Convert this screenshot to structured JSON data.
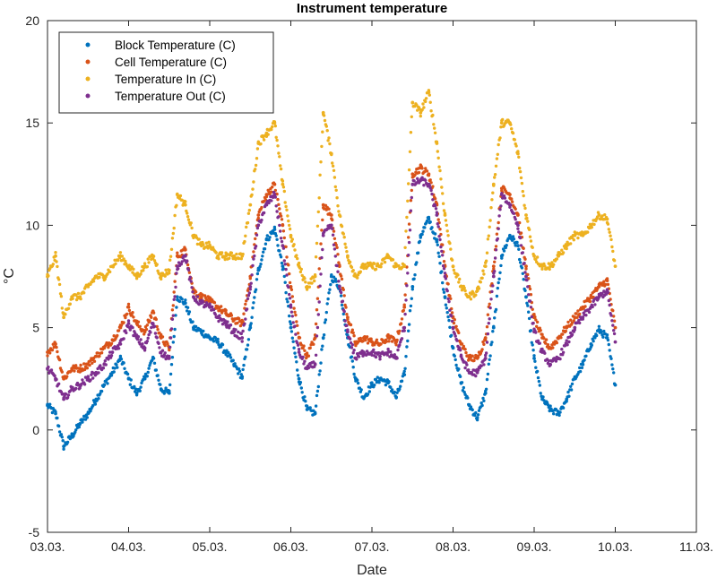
{
  "chart_data": {
    "type": "scatter",
    "title": "Instrument temperature",
    "xlabel": "Date",
    "ylabel": "°C",
    "xlim": [
      0,
      8
    ],
    "ylim": [
      -5,
      20
    ],
    "grid": false,
    "legend_position": "top-left",
    "x_ticks": [
      0,
      1,
      2,
      3,
      4,
      5,
      6,
      7,
      8
    ],
    "x_tick_labels": [
      "03.03.",
      "04.03.",
      "05.03.",
      "06.03.",
      "07.03.",
      "08.03.",
      "09.03.",
      "10.03.",
      "11.03."
    ],
    "y_ticks": [
      -5,
      0,
      5,
      10,
      15,
      20
    ],
    "y_tick_labels": [
      "-5",
      "0",
      "5",
      "10",
      "15",
      "20"
    ],
    "x_unit": "days since 03.03.",
    "x": [
      0.0,
      0.1,
      0.2,
      0.3,
      0.4,
      0.5,
      0.6,
      0.7,
      0.8,
      0.9,
      1.0,
      1.1,
      1.2,
      1.3,
      1.4,
      1.5,
      1.6,
      1.7,
      1.8,
      1.9,
      2.0,
      2.1,
      2.2,
      2.3,
      2.4,
      2.5,
      2.6,
      2.7,
      2.8,
      2.9,
      3.0,
      3.1,
      3.2,
      3.3,
      3.4,
      3.5,
      3.6,
      3.7,
      3.8,
      3.9,
      4.0,
      4.1,
      4.2,
      4.3,
      4.4,
      4.5,
      4.6,
      4.7,
      4.8,
      4.9,
      5.0,
      5.1,
      5.2,
      5.3,
      5.4,
      5.5,
      5.6,
      5.7,
      5.8,
      5.9,
      6.0,
      6.1,
      6.2,
      6.3,
      6.4,
      6.5,
      6.6,
      6.7,
      6.8,
      6.9,
      7.0
    ],
    "series": [
      {
        "name": "Block Temperature (C)",
        "color": "#0072BD",
        "values": [
          1.2,
          0.8,
          -0.8,
          -0.3,
          0.3,
          0.8,
          1.5,
          2.2,
          2.8,
          3.5,
          2.5,
          1.8,
          2.5,
          3.5,
          2.0,
          1.8,
          6.5,
          6.2,
          5.0,
          4.8,
          4.5,
          4.3,
          3.8,
          3.2,
          2.6,
          5.0,
          7.8,
          9.3,
          9.8,
          8.0,
          5.0,
          2.5,
          1.0,
          0.8,
          4.5,
          7.5,
          7.0,
          4.5,
          2.5,
          1.6,
          2.2,
          2.5,
          2.3,
          1.6,
          2.7,
          7.0,
          9.5,
          10.3,
          9.2,
          6.5,
          4.0,
          2.3,
          1.2,
          0.6,
          1.8,
          5.0,
          8.5,
          9.5,
          9.0,
          6.5,
          3.5,
          1.5,
          1.0,
          0.8,
          1.5,
          2.5,
          3.2,
          4.2,
          4.9,
          4.5,
          2.2
        ]
      },
      {
        "name": "Cell Temperature (C)",
        "color": "#D95319",
        "values": [
          3.8,
          4.2,
          2.5,
          3.0,
          3.0,
          3.2,
          3.6,
          4.0,
          4.4,
          5.0,
          6.0,
          5.2,
          4.8,
          5.8,
          4.5,
          4.0,
          8.5,
          8.8,
          6.8,
          6.5,
          6.3,
          6.0,
          5.7,
          5.4,
          5.2,
          7.5,
          10.5,
          11.5,
          12.0,
          10.0,
          7.0,
          4.5,
          3.6,
          4.5,
          11.0,
          10.5,
          8.0,
          5.5,
          4.2,
          4.5,
          4.3,
          4.2,
          4.5,
          4.3,
          6.0,
          12.5,
          12.8,
          12.5,
          11.0,
          8.0,
          5.5,
          4.2,
          3.5,
          3.5,
          4.5,
          8.0,
          11.8,
          11.5,
          10.5,
          8.0,
          5.5,
          4.5,
          4.0,
          4.5,
          5.0,
          5.5,
          6.0,
          6.5,
          7.0,
          7.3,
          5.0
        ]
      },
      {
        "name": "Temperature In (C)",
        "color": "#EDB120",
        "values": [
          7.5,
          8.5,
          5.5,
          6.5,
          6.5,
          7.0,
          7.5,
          7.5,
          8.0,
          8.5,
          8.0,
          7.5,
          8.0,
          8.5,
          7.5,
          7.8,
          11.5,
          11.0,
          9.5,
          9.0,
          9.0,
          8.5,
          8.5,
          8.5,
          8.5,
          11.0,
          14.0,
          14.5,
          15.0,
          12.0,
          9.5,
          8.0,
          7.0,
          7.5,
          15.5,
          13.5,
          10.5,
          8.5,
          7.5,
          8.0,
          8.0,
          8.0,
          8.5,
          8.0,
          8.0,
          16.0,
          15.5,
          16.5,
          14.0,
          10.5,
          8.0,
          7.0,
          6.5,
          6.8,
          8.0,
          12.0,
          15.0,
          15.0,
          13.5,
          10.5,
          8.5,
          8.0,
          8.0,
          8.5,
          9.0,
          9.5,
          9.5,
          10.0,
          10.5,
          10.3,
          8.0
        ]
      },
      {
        "name": "Temperature Out (C)",
        "color": "#7E2F8E",
        "values": [
          3.0,
          2.5,
          1.5,
          2.0,
          2.2,
          2.5,
          2.8,
          3.2,
          3.8,
          4.2,
          5.2,
          4.5,
          4.0,
          5.2,
          3.8,
          3.5,
          8.0,
          8.5,
          6.5,
          6.2,
          6.0,
          5.5,
          5.2,
          4.8,
          4.5,
          7.0,
          10.0,
          11.0,
          11.5,
          9.0,
          6.0,
          3.8,
          3.0,
          3.2,
          9.5,
          10.0,
          7.0,
          4.8,
          3.5,
          3.8,
          3.8,
          3.6,
          3.8,
          3.5,
          5.0,
          12.0,
          12.2,
          12.0,
          10.5,
          7.5,
          5.0,
          3.6,
          2.8,
          2.8,
          3.5,
          7.5,
          11.5,
          11.0,
          10.0,
          7.5,
          4.8,
          3.8,
          3.2,
          3.5,
          4.2,
          5.0,
          5.5,
          6.0,
          6.5,
          6.8,
          4.3
        ]
      }
    ]
  }
}
